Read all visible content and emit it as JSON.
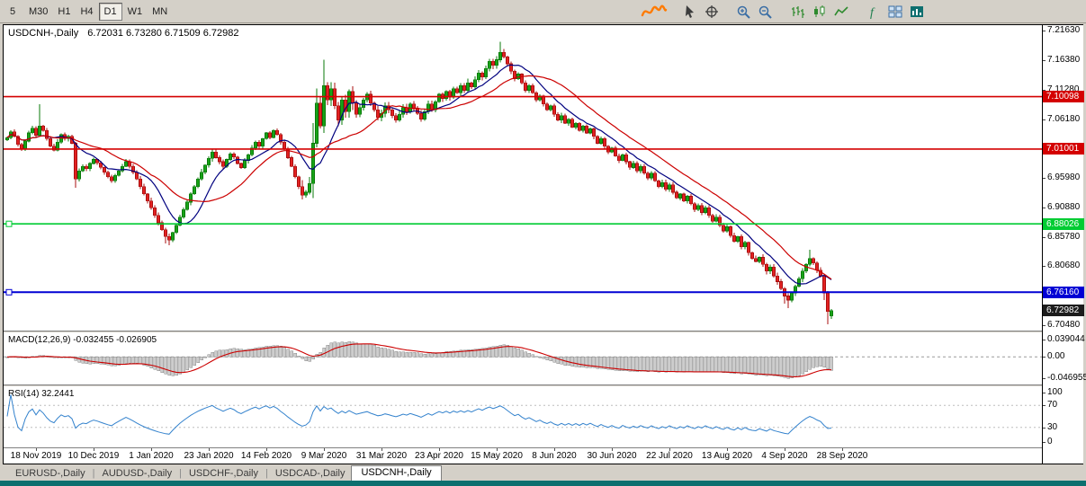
{
  "colors": {
    "window_bg": "#d4d0c8",
    "chart_bg": "#ffffff",
    "taskbar": "#0d6f6f",
    "up_fill": "#18a318",
    "up_stroke": "#0a7a0a",
    "down_fill": "#e32222",
    "down_stroke": "#a80f0f",
    "ma_fast": "#00007f",
    "ma_slow": "#cc0000",
    "macd_bar_fill": "#cdcdcd",
    "macd_bar_stroke": "#8a8a8a",
    "macd_signal": "#cc0000",
    "rsi_line": "#3382cd",
    "axis_text": "#000000"
  },
  "toolbar": {
    "timeframes": [
      "5",
      "M30",
      "H1",
      "H4",
      "D1",
      "W1",
      "MN"
    ],
    "active_timeframe": "D1",
    "icons": [
      {
        "name": "scribble-icon",
        "type": "scribble",
        "color": "#ff7a00",
        "gap_before": false
      },
      {
        "name": "cursor-icon",
        "type": "cursor",
        "color": "#3c3c3c",
        "gap_before": true
      },
      {
        "name": "crosshair-icon",
        "type": "crosshair",
        "color": "#3c3c3c",
        "gap_before": false
      },
      {
        "name": "zoom-in-icon",
        "type": "zoom-in",
        "color": "#3a6ea5",
        "gap_before": true
      },
      {
        "name": "zoom-out-icon",
        "type": "zoom-out",
        "color": "#3a6ea5",
        "gap_before": false
      },
      {
        "name": "bar-chart-icon",
        "type": "bars",
        "color": "#2d8a2d",
        "gap_before": true
      },
      {
        "name": "candlestick-chart-icon",
        "type": "candles",
        "color": "#2d8a2d",
        "gap_before": false
      },
      {
        "name": "line-chart-icon",
        "type": "line",
        "color": "#2d8a2d",
        "gap_before": false
      },
      {
        "name": "indicators-icon",
        "type": "indicators",
        "color": "#1f7f4f",
        "gap_before": true
      },
      {
        "name": "tile-windows-icon",
        "type": "tiles",
        "color": "#3a6ea5",
        "gap_before": false
      },
      {
        "name": "new-chart-icon",
        "type": "new-chart",
        "color": "#0e6f6f",
        "gap_before": false
      }
    ]
  },
  "chart": {
    "title_symbol": "USDCNH-,Daily",
    "title_ohlc": "6.72031 6.73280 6.71509 6.72982",
    "price_axis": {
      "pmax": 7.225,
      "pmin": 6.695,
      "labels": [
        "7.21630",
        "7.16380",
        "7.11280",
        "7.06180",
        "7.01080",
        "6.95980",
        "6.90880",
        "6.85780",
        "6.80680",
        "6.75580",
        "6.70480"
      ]
    },
    "x_axis": {
      "tick_days": [
        8,
        24,
        40,
        56,
        72,
        88,
        104,
        120,
        136,
        152,
        168,
        184,
        200,
        216,
        232
      ],
      "labels": [
        "18 Nov 2019",
        "10 Dec 2019",
        "1 Jan 2020",
        "23 Jan 2020",
        "14 Feb 2020",
        "9 Mar 2020",
        "31 Mar 2020",
        "23 Apr 2020",
        "15 May 2020",
        "8 Jun 2020",
        "30 Jun 2020",
        "22 Jul 2020",
        "13 Aug 2020",
        "4 Sep 2020",
        "28 Sep 2020"
      ]
    },
    "current_price": {
      "value": 6.72982,
      "label": "6.72982",
      "badge_color": "#1c1c1c"
    }
  },
  "chart_data": {
    "type": "candlestick",
    "symbol": "USDCNH",
    "timeframe": "Daily",
    "last_ohlc": {
      "open": 6.72031,
      "high": 6.7328,
      "low": 6.71509,
      "close": 6.72982
    },
    "first_open": 7.026,
    "closes": [
      7.03,
      7.04,
      7.032,
      7.018,
      7.01,
      7.024,
      7.038,
      7.046,
      7.034,
      7.05,
      7.042,
      7.028,
      7.015,
      7.008,
      7.022,
      7.035,
      7.028,
      7.032,
      7.02,
      6.958,
      6.972,
      6.98,
      6.976,
      6.985,
      6.992,
      6.986,
      6.978,
      6.97,
      6.962,
      6.955,
      6.964,
      6.972,
      6.98,
      6.988,
      6.98,
      6.97,
      6.958,
      6.945,
      6.932,
      6.92,
      6.908,
      6.895,
      6.882,
      6.87,
      6.858,
      6.852,
      6.865,
      6.878,
      6.892,
      6.905,
      6.918,
      6.932,
      6.945,
      6.958,
      6.97,
      6.982,
      6.994,
      7.005,
      6.995,
      6.988,
      6.98,
      6.992,
      7.002,
      6.996,
      6.985,
      6.978,
      6.99,
      7.0,
      7.012,
      7.022,
      7.015,
      7.028,
      7.038,
      7.03,
      7.042,
      7.035,
      7.022,
      7.01,
      6.995,
      6.98,
      6.962,
      6.945,
      6.93,
      6.935,
      6.95,
      7.02,
      7.09,
      7.05,
      7.12,
      7.095,
      7.115,
      7.085,
      7.06,
      7.095,
      7.075,
      7.11,
      7.09,
      7.07,
      7.082,
      7.095,
      7.105,
      7.09,
      7.078,
      7.065,
      7.072,
      7.085,
      7.078,
      7.068,
      7.06,
      7.07,
      7.082,
      7.075,
      7.088,
      7.08,
      7.072,
      7.062,
      7.075,
      7.088,
      7.078,
      7.092,
      7.105,
      7.098,
      7.11,
      7.1,
      7.115,
      7.108,
      7.12,
      7.112,
      7.125,
      7.118,
      7.13,
      7.142,
      7.135,
      7.15,
      7.162,
      7.155,
      7.165,
      7.178,
      7.17,
      7.158,
      7.145,
      7.132,
      7.14,
      7.125,
      7.112,
      7.12,
      7.108,
      7.095,
      7.102,
      7.088,
      7.078,
      7.085,
      7.07,
      7.06,
      7.068,
      7.055,
      7.062,
      7.048,
      7.055,
      7.042,
      7.05,
      7.038,
      7.045,
      7.032,
      7.02,
      7.028,
      7.015,
      7.005,
      7.012,
      6.998,
      6.99,
      7.0,
      6.988,
      6.978,
      6.985,
      6.972,
      6.98,
      6.968,
      6.96,
      6.968,
      6.955,
      6.945,
      6.952,
      6.94,
      6.948,
      6.935,
      6.925,
      6.932,
      6.92,
      6.928,
      6.915,
      6.905,
      6.912,
      6.9,
      6.908,
      6.895,
      6.885,
      6.892,
      6.878,
      6.868,
      6.875,
      6.86,
      6.85,
      6.858,
      6.84,
      6.848,
      6.83,
      6.82,
      6.815,
      6.822,
      6.81,
      6.798,
      6.805,
      6.79,
      6.78,
      6.768,
      6.755,
      6.748,
      6.76,
      6.772,
      6.785,
      6.798,
      6.81,
      6.82,
      6.812,
      6.8,
      6.79,
      6.76,
      6.728,
      6.72982
    ],
    "overrides": {
      "9": {
        "h": 7.088
      },
      "19": {
        "l": 6.943
      },
      "44": {
        "l": 6.846
      },
      "45": {
        "l": 6.843
      },
      "85": {
        "h": 7.055,
        "l": 6.925
      },
      "86": {
        "h": 7.115
      },
      "88": {
        "h": 7.165
      },
      "137": {
        "h": 7.1965
      },
      "216": {
        "l": 6.742
      },
      "217": {
        "l": 6.734
      },
      "223": {
        "h": 6.835
      },
      "227": {
        "l": 6.748
      },
      "228": {
        "l": 6.706
      },
      "229": {
        "o": 6.72031,
        "h": 6.7328,
        "l": 6.71509,
        "c": 6.72982
      }
    },
    "volatility_eras": [
      {
        "from": 0,
        "to": 33,
        "wick": 0.005
      },
      {
        "from": 34,
        "to": 57,
        "wick": 0.006
      },
      {
        "from": 58,
        "to": 81,
        "wick": 0.005
      },
      {
        "from": 82,
        "to": 98,
        "wick": 0.013
      },
      {
        "from": 99,
        "to": 139,
        "wick": 0.007
      },
      {
        "from": 140,
        "to": 209,
        "wick": 0.005
      },
      {
        "from": 210,
        "to": 229,
        "wick": 0.006
      }
    ],
    "moving_averages": [
      {
        "period": 10,
        "color": "#00007f"
      },
      {
        "period": 22,
        "color": "#cc0000"
      }
    ],
    "levels": [
      {
        "price": 7.10098,
        "label": "7.10098",
        "color": "#d40000",
        "width": 1.6,
        "handles": false
      },
      {
        "price": 7.01001,
        "label": "7.01001",
        "color": "#d40000",
        "width": 1.6,
        "handles": false
      },
      {
        "price": 6.88026,
        "label": "6.88026",
        "color": "#00cc33",
        "width": 1.6,
        "handles": true
      },
      {
        "price": 6.7616,
        "label": "6.76160",
        "color": "#0000d4",
        "width": 2,
        "handles": true
      }
    ],
    "macd": {
      "label": "MACD(12,26,9)",
      "values_text": "-0.032455 -0.026905",
      "fast": 12,
      "slow": 26,
      "signal": 9,
      "vmax": 0.0395,
      "vmin": -0.047,
      "scale_labels": [
        "0.039044",
        "0.00",
        "-0.046955"
      ]
    },
    "rsi": {
      "label": "RSI(14)",
      "value_text": "32.2441",
      "period": 14,
      "levels": [
        70,
        30
      ],
      "scale_labels": [
        "100",
        "70",
        "30",
        "0"
      ]
    }
  },
  "tabs": {
    "items": [
      "EURUSD-,Daily",
      "AUDUSD-,Daily",
      "USDCHF-,Daily",
      "USDCAD-,Daily",
      "USDCNH-,Daily"
    ],
    "active": "USDCNH-,Daily"
  }
}
